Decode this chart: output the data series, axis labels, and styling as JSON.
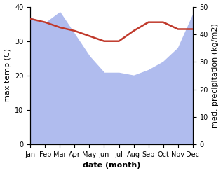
{
  "months": [
    "Jan",
    "Feb",
    "Mar",
    "Apr",
    "May",
    "Jun",
    "Jul",
    "Aug",
    "Sep",
    "Oct",
    "Nov",
    "Dec"
  ],
  "month_indices": [
    0,
    1,
    2,
    3,
    4,
    5,
    6,
    7,
    8,
    9,
    10,
    11
  ],
  "precipitation": [
    46,
    44,
    48,
    40,
    32,
    26,
    26,
    25,
    27,
    30,
    35,
    47
  ],
  "temperature": [
    36.5,
    35.5,
    34.0,
    33.0,
    31.5,
    30.0,
    30.0,
    33.0,
    35.5,
    35.5,
    33.5,
    33.5
  ],
  "temp_color": "#c0392b",
  "precip_color": "#b0bcee",
  "left_ylim": [
    0,
    40
  ],
  "right_ylim": [
    0,
    50
  ],
  "left_ylabel": "max temp (C)",
  "right_ylabel": "med. precipitation (kg/m2)",
  "xlabel": "date (month)",
  "right_yticks": [
    0,
    10,
    20,
    30,
    40,
    50
  ],
  "left_yticks": [
    0,
    10,
    20,
    30,
    40
  ],
  "bg_color": "#ffffff",
  "label_fontsize": 8,
  "tick_fontsize": 7
}
